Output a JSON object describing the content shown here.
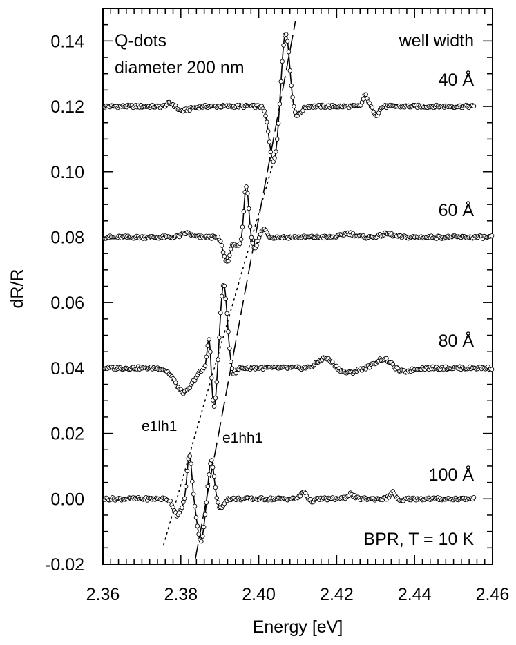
{
  "chart_data": {
    "type": "line",
    "xlabel": "Energy [eV]",
    "ylabel": "dR/R",
    "xlim": [
      2.36,
      2.46
    ],
    "ylim": [
      -0.02,
      0.15
    ],
    "xticks": [
      "2.36",
      "2.38",
      "2.40",
      "2.42",
      "2.44",
      "2.46"
    ],
    "yticks": [
      "-0.02",
      "0.00",
      "0.02",
      "0.04",
      "0.06",
      "0.08",
      "0.10",
      "0.12",
      "0.14"
    ],
    "xtick_values": [
      2.36,
      2.38,
      2.4,
      2.42,
      2.44,
      2.46
    ],
    "ytick_values": [
      -0.02,
      0.0,
      0.02,
      0.04,
      0.06,
      0.08,
      0.1,
      0.12,
      0.14
    ],
    "grid": false,
    "annotations": {
      "sample": "Q-dots",
      "diameter": "diameter 200 nm",
      "legend_title": "well width",
      "method": "BPR, T = 10 K",
      "transition_lh": "e1lh1",
      "transition_hh": "e1hh1"
    },
    "series": [
      {
        "name": "40 Å",
        "offset": 0.12,
        "x_range": [
          2.36,
          2.4555
        ],
        "features": [
          [
            2.3775,
            0.002,
            0.0012
          ],
          [
            2.3795,
            -0.0015,
            0.0025
          ],
          [
            2.4038,
            -0.017,
            0.0011
          ],
          [
            2.4069,
            0.023,
            0.001
          ],
          [
            2.4097,
            -0.003,
            0.0011
          ],
          [
            2.4274,
            0.0035,
            0.0006
          ],
          [
            2.4302,
            -0.0025,
            0.0007
          ]
        ]
      },
      {
        "name": "60 Å",
        "offset": 0.08,
        "x_range": [
          2.36,
          2.46
        ],
        "features": [
          [
            2.3815,
            0.0012,
            0.0012
          ],
          [
            2.3918,
            -0.0075,
            0.0009
          ],
          [
            2.3948,
            -0.003,
            0.0008
          ],
          [
            2.3968,
            0.016,
            0.0006
          ],
          [
            2.399,
            -0.003,
            0.0007
          ],
          [
            2.4013,
            0.0025,
            0.0007
          ],
          [
            2.423,
            0.0012,
            0.0015
          ],
          [
            2.433,
            0.001,
            0.0015
          ]
        ]
      },
      {
        "name": "80 Å",
        "offset": 0.04,
        "x_range": [
          2.36,
          2.46
        ],
        "features": [
          [
            2.3808,
            -0.0075,
            0.0022
          ],
          [
            2.3873,
            0.0115,
            0.0005
          ],
          [
            2.3885,
            -0.013,
            0.0007
          ],
          [
            2.391,
            0.0255,
            0.0009
          ],
          [
            2.3936,
            -0.002,
            0.0006
          ],
          [
            2.417,
            0.003,
            0.0018
          ],
          [
            2.423,
            -0.0015,
            0.002
          ],
          [
            2.432,
            0.0028,
            0.002
          ],
          [
            2.437,
            -0.0012,
            0.002
          ]
        ]
      },
      {
        "name": "100 Å",
        "offset": 0.0,
        "x_range": [
          2.36,
          2.4555
        ],
        "features": [
          [
            2.3792,
            -0.005,
            0.001
          ],
          [
            2.3822,
            0.0135,
            0.0006
          ],
          [
            2.3851,
            -0.013,
            0.0009
          ],
          [
            2.3878,
            0.012,
            0.0007
          ],
          [
            2.3902,
            -0.003,
            0.0007
          ],
          [
            2.4117,
            0.0025,
            0.0008
          ],
          [
            2.413,
            -0.001,
            0.001
          ],
          [
            2.4235,
            0.0015,
            0.0008
          ],
          [
            2.4345,
            0.002,
            0.0008
          ],
          [
            2.4362,
            -0.001,
            0.0008
          ]
        ]
      }
    ],
    "guide_lines": [
      {
        "name": "e1lh1",
        "style": "dotted",
        "points": [
          [
            2.3756,
            -0.014
          ],
          [
            2.4045,
            0.106
          ]
        ]
      },
      {
        "name": "e1hh1",
        "style": "dashed",
        "points": [
          [
            2.3837,
            -0.0185
          ],
          [
            2.4094,
            0.146
          ]
        ]
      }
    ]
  }
}
